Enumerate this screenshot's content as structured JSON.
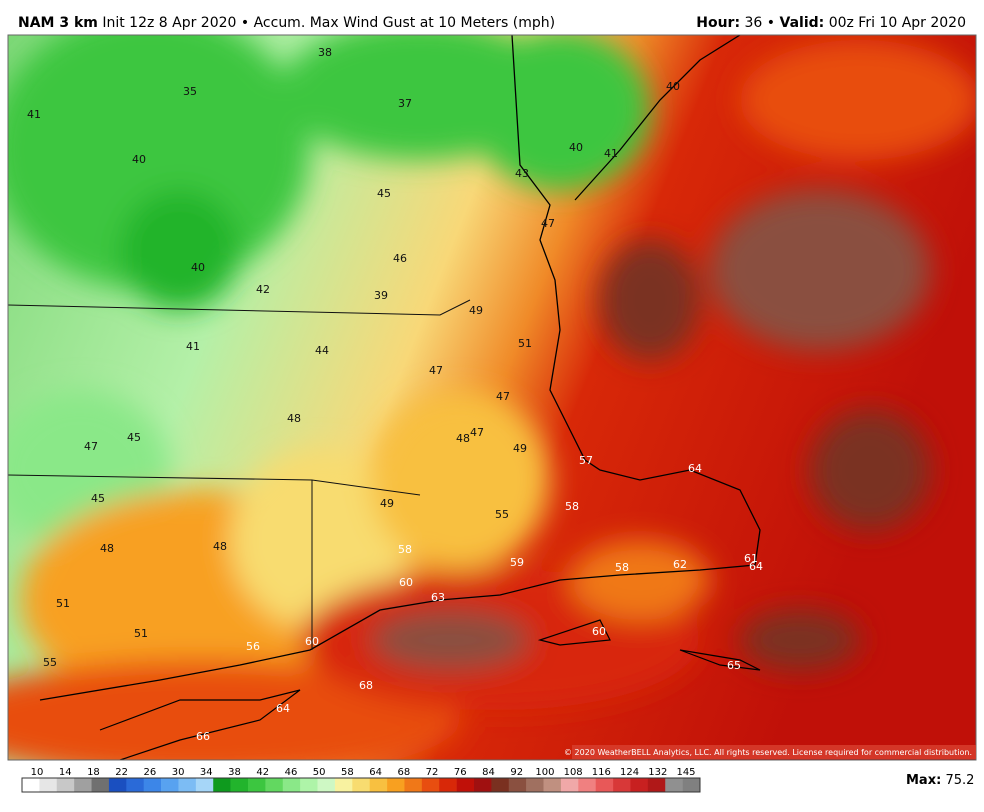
{
  "header": {
    "model": "NAM 3 km",
    "description": "Init 12z 8 Apr 2020 • Accum. Max Wind Gust at 10 Meters (mph)",
    "hour_label": "Hour:",
    "hour": "36 •",
    "valid_label": "Valid:",
    "valid": "00z Fri 10 Apr 2020"
  },
  "map": {
    "labels": [
      38,
      35,
      37,
      41,
      40,
      40,
      40,
      41,
      43,
      45,
      47,
      46,
      40,
      42,
      39,
      49,
      51,
      41,
      44,
      47,
      47,
      48,
      48,
      47,
      49,
      45,
      47,
      57,
      64,
      45,
      49,
      58,
      55,
      48,
      48,
      58,
      59,
      58,
      62,
      61,
      64,
      60,
      63,
      51,
      51,
      60,
      60,
      56,
      55,
      65,
      68,
      64,
      66
    ],
    "copyright": "© 2020 WeatherBELL Analytics, LLC. All rights reserved. License required for commercial distribution."
  },
  "colorbar": {
    "ticks": [
      10,
      14,
      18,
      22,
      26,
      30,
      34,
      38,
      42,
      46,
      50,
      58,
      64,
      68,
      72,
      76,
      84,
      92,
      100,
      108,
      116,
      124,
      132,
      145
    ],
    "colors": [
      "#ffffff",
      "#e6e6e6",
      "#c8c8c8",
      "#a0a0a0",
      "#707070",
      "#1a4fc0",
      "#2a6ad8",
      "#3c86e8",
      "#58a2f0",
      "#7cbcf4",
      "#a6d6f8",
      "#0e9a1e",
      "#22b42c",
      "#3cc640",
      "#62d860",
      "#8ae888",
      "#aef4a8",
      "#cef8c4",
      "#f8f2a0",
      "#f8dc70",
      "#f8c040",
      "#f8a020",
      "#f07818",
      "#e84e10",
      "#d82808",
      "#c01008",
      "#a01010",
      "#7a3020",
      "#8a5040",
      "#a07060",
      "#c09080",
      "#f0a8a8",
      "#f08080",
      "#e85858",
      "#d83838",
      "#c82020",
      "#b01818",
      "#909090",
      "#808080"
    ]
  },
  "footer": {
    "max_label": "Max:",
    "max": 75.2
  }
}
